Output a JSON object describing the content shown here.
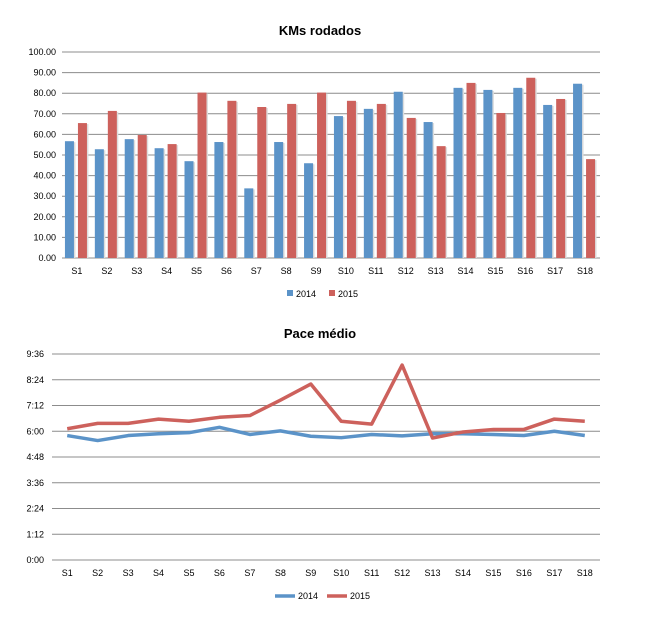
{
  "colors": {
    "2014": "#5b93c8",
    "2015": "#cd615c",
    "grid": "#8c8c8c"
  },
  "chart_data": [
    {
      "type": "bar",
      "title": "KMs rodados",
      "xlabel": "",
      "ylabel": "",
      "ylim": [
        0,
        100
      ],
      "yticks": [
        "0.00",
        "10.00",
        "20.00",
        "30.00",
        "40.00",
        "50.00",
        "60.00",
        "70.00",
        "80.00",
        "90.00",
        "100.00"
      ],
      "grid": true,
      "legend_position": "bottom",
      "categories": [
        "S1",
        "S2",
        "S3",
        "S4",
        "S5",
        "S6",
        "S7",
        "S8",
        "S9",
        "S10",
        "S11",
        "S12",
        "S13",
        "S14",
        "S15",
        "S16",
        "S17",
        "S18"
      ],
      "series": [
        {
          "name": "2014",
          "values": [
            56.7,
            52.8,
            57.7,
            53.3,
            47.0,
            56.3,
            33.8,
            56.3,
            46.0,
            68.9,
            72.4,
            80.7,
            66.0,
            82.6,
            81.6,
            82.6,
            74.3,
            84.6
          ]
        },
        {
          "name": "2015",
          "values": [
            65.5,
            71.4,
            59.7,
            55.3,
            80.3,
            76.3,
            73.3,
            74.8,
            80.3,
            76.3,
            74.8,
            68.0,
            54.3,
            85.0,
            70.4,
            87.5,
            77.2,
            48.0
          ]
        }
      ]
    },
    {
      "type": "line",
      "title": "Pace médio",
      "xlabel": "",
      "ylabel": "",
      "ylim": [
        "0:00",
        "9:36"
      ],
      "yticks": [
        "0:00",
        "1:12",
        "2:24",
        "3:36",
        "4:48",
        "6:00",
        "7:12",
        "8:24",
        "9:36"
      ],
      "grid": true,
      "legend_position": "bottom",
      "categories": [
        "S1",
        "S2",
        "S3",
        "S4",
        "S5",
        "S6",
        "S7",
        "S8",
        "S9",
        "S10",
        "S11",
        "S12",
        "S13",
        "S14",
        "S15",
        "S16",
        "S17",
        "S18"
      ],
      "series": [
        {
          "name": "2014",
          "values": [
            "5:48",
            "5:34",
            "5:48",
            "5:53",
            "5:56",
            "6:11",
            "5:51",
            "6:01",
            "5:46",
            "5:42",
            "5:51",
            "5:47",
            "5:53",
            "5:53",
            "5:51",
            "5:48",
            "6:00",
            "5:48"
          ]
        },
        {
          "name": "2015",
          "values": [
            "6:07",
            "6:22",
            "6:22",
            "6:34",
            "6:28",
            "6:39",
            "6:44",
            "7:27",
            "8:12",
            "6:28",
            "6:20",
            "9:05",
            "5:41",
            "5:58",
            "6:05",
            "6:05",
            "6:34",
            "6:28"
          ]
        }
      ]
    }
  ]
}
